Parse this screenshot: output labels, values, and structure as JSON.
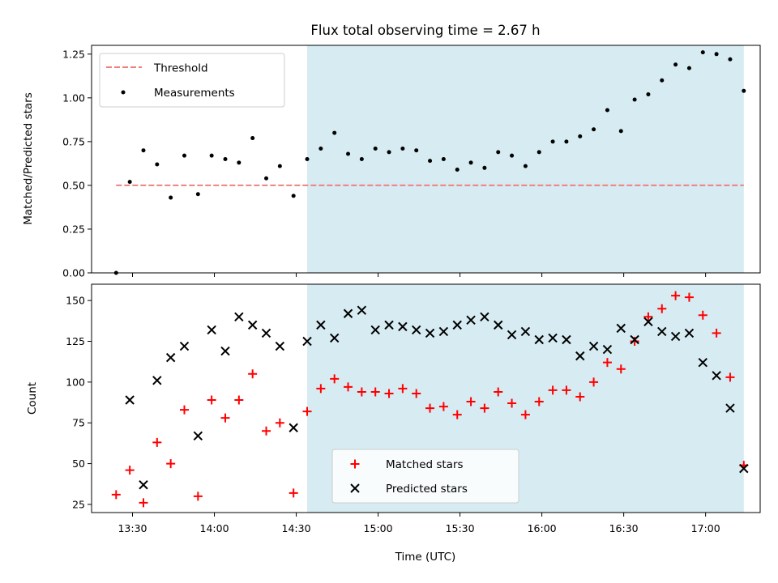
{
  "chart_data": [
    {
      "type": "scatter",
      "title": "Flux total observing time = 2.67 h",
      "xlabel": "",
      "ylabel": "Matched/Predicted stars",
      "ylim": [
        0,
        1.3
      ],
      "yticks": [
        "0.00",
        "0.25",
        "0.50",
        "0.75",
        "1.00",
        "1.25"
      ],
      "shaded_region": {
        "from": "14:34",
        "to": "17:14",
        "color": "#add8e6"
      },
      "threshold": {
        "name": "Threshold",
        "value": 0.5,
        "from": "13:24",
        "to": "17:14",
        "color": "#f08080"
      },
      "legend": {
        "placement": "upper left",
        "entries": [
          "Threshold",
          "Measurements"
        ]
      },
      "series": [
        {
          "name": "Measurements",
          "color": "#000000",
          "x": [
            "13:24",
            "13:29",
            "13:34",
            "13:39",
            "13:44",
            "13:49",
            "13:54",
            "13:59",
            "14:04",
            "14:09",
            "14:14",
            "14:19",
            "14:24",
            "14:29",
            "14:34",
            "14:39",
            "14:44",
            "14:49",
            "14:54",
            "14:59",
            "15:04",
            "15:09",
            "15:14",
            "15:19",
            "15:24",
            "15:29",
            "15:34",
            "15:39",
            "15:44",
            "15:49",
            "15:54",
            "15:59",
            "16:04",
            "16:09",
            "16:14",
            "16:19",
            "16:24",
            "16:29",
            "16:34",
            "16:39",
            "16:44",
            "16:49",
            "16:54",
            "16:59",
            "17:04",
            "17:09",
            "17:14"
          ],
          "values": [
            0.0,
            0.52,
            0.7,
            0.62,
            0.43,
            0.67,
            0.45,
            0.67,
            0.65,
            0.63,
            0.77,
            0.54,
            0.61,
            0.44,
            0.65,
            0.71,
            0.8,
            0.68,
            0.65,
            0.71,
            0.69,
            0.71,
            0.7,
            0.64,
            0.65,
            0.59,
            0.63,
            0.6,
            0.69,
            0.67,
            0.61,
            0.69,
            0.75,
            0.75,
            0.78,
            0.82,
            0.93,
            0.81,
            0.99,
            1.02,
            1.1,
            1.19,
            1.17,
            1.26,
            1.25,
            1.22,
            1.04
          ]
        }
      ]
    },
    {
      "type": "scatter",
      "title": "",
      "xlabel": "Time (UTC)",
      "ylabel": "Count",
      "ylim": [
        20,
        160
      ],
      "yticks": [
        "25",
        "50",
        "75",
        "100",
        "125",
        "150"
      ],
      "xticks": [
        "13:30",
        "14:00",
        "14:30",
        "15:00",
        "15:30",
        "16:00",
        "16:30",
        "17:00"
      ],
      "xlim": [
        "13:15",
        "17:20"
      ],
      "shaded_region": {
        "from": "14:34",
        "to": "17:14",
        "color": "#add8e6"
      },
      "legend": {
        "placement": "lower center",
        "entries": [
          "Matched stars",
          "Predicted stars"
        ]
      },
      "series": [
        {
          "name": "Matched stars",
          "marker": "+",
          "color": "#ff0000",
          "x": [
            "13:24",
            "13:29",
            "13:34",
            "13:39",
            "13:44",
            "13:49",
            "13:54",
            "13:59",
            "14:04",
            "14:09",
            "14:14",
            "14:19",
            "14:24",
            "14:29",
            "14:34",
            "14:39",
            "14:44",
            "14:49",
            "14:54",
            "14:59",
            "15:04",
            "15:09",
            "15:14",
            "15:19",
            "15:24",
            "15:29",
            "15:34",
            "15:39",
            "15:44",
            "15:49",
            "15:54",
            "15:59",
            "16:04",
            "16:09",
            "16:14",
            "16:19",
            "16:24",
            "16:29",
            "16:34",
            "16:39",
            "16:44",
            "16:49",
            "16:54",
            "16:59",
            "17:04",
            "17:09",
            "17:14"
          ],
          "values": [
            31,
            46,
            26,
            63,
            50,
            83,
            30,
            89,
            78,
            89,
            105,
            70,
            75,
            32,
            82,
            96,
            102,
            97,
            94,
            94,
            93,
            96,
            93,
            84,
            85,
            80,
            88,
            84,
            94,
            87,
            80,
            88,
            95,
            95,
            91,
            100,
            112,
            108,
            125,
            140,
            145,
            153,
            152,
            141,
            130,
            103,
            49
          ]
        },
        {
          "name": "Predicted stars",
          "marker": "x",
          "color": "#000000",
          "x": [
            "13:29",
            "13:34",
            "13:39",
            "13:44",
            "13:49",
            "13:54",
            "13:59",
            "14:04",
            "14:09",
            "14:14",
            "14:19",
            "14:24",
            "14:29",
            "14:34",
            "14:39",
            "14:44",
            "14:49",
            "14:54",
            "14:59",
            "15:04",
            "15:09",
            "15:14",
            "15:19",
            "15:24",
            "15:29",
            "15:34",
            "15:39",
            "15:44",
            "15:49",
            "15:54",
            "15:59",
            "16:04",
            "16:09",
            "16:14",
            "16:19",
            "16:24",
            "16:29",
            "16:34",
            "16:39",
            "16:44",
            "16:49",
            "16:54",
            "16:59",
            "17:04",
            "17:09",
            "17:14"
          ],
          "values": [
            89,
            37,
            101,
            115,
            122,
            67,
            132,
            119,
            140,
            135,
            130,
            122,
            72,
            125,
            135,
            127,
            142,
            144,
            132,
            135,
            134,
            132,
            130,
            131,
            135,
            138,
            140,
            135,
            129,
            131,
            126,
            127,
            126,
            116,
            122,
            120,
            133,
            126,
            137,
            131,
            128,
            130,
            112,
            104,
            84,
            47
          ]
        }
      ]
    }
  ]
}
